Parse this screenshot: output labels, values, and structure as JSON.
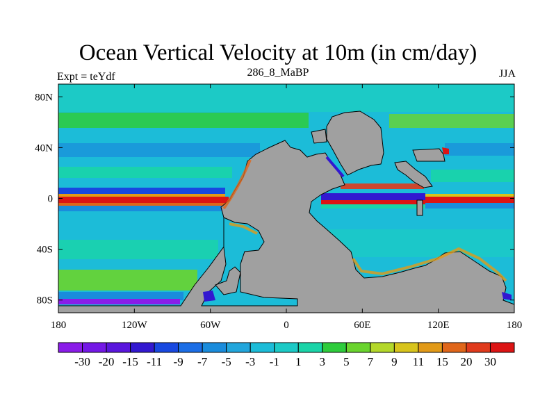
{
  "chart_data": {
    "type": "heatmap",
    "title": "Ocean Vertical Velocity at 10m (in cm/day)",
    "subtitle_left": "Expt = teYdf",
    "subtitle_center": "286_8_MaBP",
    "subtitle_right": "JJA",
    "x_range": [
      -180,
      180
    ],
    "y_range": [
      -90,
      90
    ],
    "x_ticks": [
      {
        "value": -180,
        "label": "180"
      },
      {
        "value": -120,
        "label": "120W"
      },
      {
        "value": -60,
        "label": "60W"
      },
      {
        "value": 0,
        "label": "0"
      },
      {
        "value": 60,
        "label": "60E"
      },
      {
        "value": 120,
        "label": "120E"
      },
      {
        "value": 180,
        "label": "180"
      }
    ],
    "y_ticks": [
      {
        "value": 80,
        "label": "80N"
      },
      {
        "value": 40,
        "label": "40N"
      },
      {
        "value": 0,
        "label": "0"
      },
      {
        "value": -40,
        "label": "40S"
      },
      {
        "value": -80,
        "label": "80S"
      }
    ],
    "colorbar": {
      "labels": [
        "-30",
        "-20",
        "-15",
        "-11",
        "-9",
        "-7",
        "-5",
        "-3",
        "-1",
        "1",
        "3",
        "5",
        "7",
        "9",
        "11",
        "15",
        "20",
        "30"
      ],
      "colors": [
        "#8a1ce8",
        "#7418e6",
        "#5a16dd",
        "#3218d0",
        "#1848e0",
        "#1c6ee6",
        "#1a8cdc",
        "#22a6dc",
        "#1cbcd8",
        "#1ccac6",
        "#1ad4a8",
        "#2ecc3c",
        "#6ad42e",
        "#b4d82a",
        "#d8c41c",
        "#e29a18",
        "#e0661a",
        "#e03a1c",
        "#dc1414"
      ]
    }
  }
}
